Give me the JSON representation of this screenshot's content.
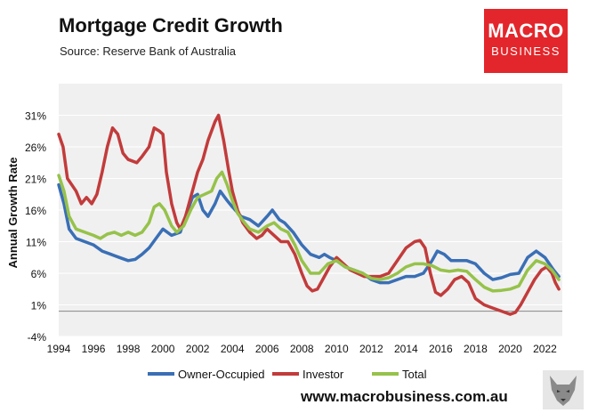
{
  "header": {
    "title": "Mortgage Credit Growth",
    "subtitle": "Source: Reserve Bank of Australia"
  },
  "logo": {
    "top": "MACRO",
    "bottom": "BUSINESS",
    "color": "#e3262b"
  },
  "footer": {
    "url": "www.macrobusiness.com.au",
    "corner_icon": "wolf-emblem-icon"
  },
  "colors": {
    "plot_bg": "#f0f0f0",
    "grid": "#ffffff",
    "zero_line": "#888888"
  },
  "chart_data": {
    "type": "line",
    "title": "Mortgage Credit Growth",
    "ylabel": "Annual Growth Rate",
    "xlabel": "",
    "xlim": [
      1994,
      2023
    ],
    "ylim": [
      -4,
      36
    ],
    "yticks": [
      -4,
      1,
      6,
      11,
      16,
      21,
      26,
      31
    ],
    "ytick_labels": [
      "-4%",
      "1%",
      "6%",
      "11%",
      "16%",
      "21%",
      "26%",
      "31%"
    ],
    "xticks": [
      1994,
      1996,
      1998,
      2000,
      2002,
      2004,
      2006,
      2008,
      2010,
      2012,
      2014,
      2016,
      2018,
      2020,
      2022
    ],
    "xtick_labels": [
      "1994",
      "1996",
      "1998",
      "2000",
      "2002",
      "2004",
      "2006",
      "2008",
      "2010",
      "2012",
      "2014",
      "2016",
      "2018",
      "2020",
      "2022"
    ],
    "grid": "horizontal",
    "legend_position": "bottom",
    "series": [
      {
        "name": "Owner-Occupied",
        "color": "#3a6fb5",
        "points": [
          [
            1994.0,
            20
          ],
          [
            1994.3,
            17
          ],
          [
            1994.6,
            13
          ],
          [
            1995.0,
            11.5
          ],
          [
            1995.5,
            11
          ],
          [
            1996.0,
            10.5
          ],
          [
            1996.5,
            9.5
          ],
          [
            1997.0,
            9
          ],
          [
            1997.5,
            8.5
          ],
          [
            1998.0,
            8
          ],
          [
            1998.4,
            8.2
          ],
          [
            1998.8,
            9
          ],
          [
            1999.2,
            10
          ],
          [
            1999.6,
            11.5
          ],
          [
            2000.0,
            13
          ],
          [
            2000.5,
            12
          ],
          [
            2001.0,
            12.5
          ],
          [
            2001.3,
            15
          ],
          [
            2001.7,
            18
          ],
          [
            2002.0,
            18.5
          ],
          [
            2002.3,
            16
          ],
          [
            2002.6,
            15
          ],
          [
            2003.0,
            17
          ],
          [
            2003.3,
            19
          ],
          [
            2003.7,
            17.5
          ],
          [
            2004.0,
            16.5
          ],
          [
            2004.5,
            15
          ],
          [
            2005.0,
            14.5
          ],
          [
            2005.5,
            13.5
          ],
          [
            2006.0,
            15
          ],
          [
            2006.3,
            16
          ],
          [
            2006.7,
            14.5
          ],
          [
            2007.0,
            14
          ],
          [
            2007.5,
            12.5
          ],
          [
            2008.0,
            10.5
          ],
          [
            2008.5,
            9
          ],
          [
            2009.0,
            8.5
          ],
          [
            2009.3,
            9
          ],
          [
            2009.6,
            8.5
          ],
          [
            2010.0,
            8
          ],
          [
            2010.5,
            7
          ],
          [
            2011.0,
            6.5
          ],
          [
            2011.5,
            6
          ],
          [
            2012.0,
            5
          ],
          [
            2012.5,
            4.5
          ],
          [
            2013.0,
            4.5
          ],
          [
            2013.5,
            5
          ],
          [
            2014.0,
            5.5
          ],
          [
            2014.5,
            5.5
          ],
          [
            2015.0,
            6
          ],
          [
            2015.5,
            8
          ],
          [
            2015.8,
            9.5
          ],
          [
            2016.2,
            9
          ],
          [
            2016.6,
            8
          ],
          [
            2017.0,
            8
          ],
          [
            2017.5,
            8
          ],
          [
            2018.0,
            7.5
          ],
          [
            2018.5,
            6
          ],
          [
            2019.0,
            5
          ],
          [
            2019.5,
            5.3
          ],
          [
            2020.0,
            5.8
          ],
          [
            2020.5,
            6
          ],
          [
            2021.0,
            8.5
          ],
          [
            2021.5,
            9.5
          ],
          [
            2022.0,
            8.5
          ],
          [
            2022.5,
            6.5
          ],
          [
            2022.8,
            5.5
          ]
        ]
      },
      {
        "name": "Investor",
        "color": "#c23b3b",
        "points": [
          [
            1994.0,
            28
          ],
          [
            1994.25,
            26
          ],
          [
            1994.5,
            21
          ],
          [
            1995.0,
            19
          ],
          [
            1995.3,
            17
          ],
          [
            1995.6,
            18
          ],
          [
            1995.9,
            17
          ],
          [
            1996.2,
            18.5
          ],
          [
            1996.5,
            22
          ],
          [
            1996.8,
            26
          ],
          [
            1997.1,
            29
          ],
          [
            1997.4,
            28
          ],
          [
            1997.7,
            25
          ],
          [
            1998.0,
            24
          ],
          [
            1998.5,
            23.5
          ],
          [
            1998.8,
            24.5
          ],
          [
            1999.2,
            26
          ],
          [
            1999.5,
            29
          ],
          [
            1999.8,
            28.5
          ],
          [
            2000.0,
            28
          ],
          [
            2000.2,
            22
          ],
          [
            2000.5,
            17
          ],
          [
            2000.8,
            14
          ],
          [
            2001.0,
            13
          ],
          [
            2001.3,
            15
          ],
          [
            2001.6,
            18
          ],
          [
            2002.0,
            22
          ],
          [
            2002.3,
            24
          ],
          [
            2002.6,
            27
          ],
          [
            2003.0,
            30
          ],
          [
            2003.2,
            31
          ],
          [
            2003.5,
            27
          ],
          [
            2003.8,
            22
          ],
          [
            2004.0,
            19
          ],
          [
            2004.3,
            16
          ],
          [
            2004.6,
            14
          ],
          [
            2005.0,
            12.5
          ],
          [
            2005.4,
            11.5
          ],
          [
            2005.7,
            12
          ],
          [
            2006.0,
            13
          ],
          [
            2006.4,
            12
          ],
          [
            2006.8,
            11
          ],
          [
            2007.2,
            11
          ],
          [
            2007.6,
            9
          ],
          [
            2008.0,
            6
          ],
          [
            2008.3,
            4
          ],
          [
            2008.6,
            3.2
          ],
          [
            2008.9,
            3.5
          ],
          [
            2009.2,
            5
          ],
          [
            2009.6,
            7
          ],
          [
            2010.0,
            8.5
          ],
          [
            2010.4,
            7.5
          ],
          [
            2010.8,
            6.5
          ],
          [
            2011.2,
            6
          ],
          [
            2011.6,
            5.5
          ],
          [
            2012.0,
            5.5
          ],
          [
            2012.5,
            5.5
          ],
          [
            2013.0,
            6
          ],
          [
            2013.5,
            8
          ],
          [
            2014.0,
            10
          ],
          [
            2014.5,
            11
          ],
          [
            2014.8,
            11.2
          ],
          [
            2015.1,
            10
          ],
          [
            2015.4,
            6
          ],
          [
            2015.7,
            3
          ],
          [
            2016.0,
            2.5
          ],
          [
            2016.4,
            3.5
          ],
          [
            2016.8,
            5
          ],
          [
            2017.2,
            5.5
          ],
          [
            2017.6,
            4.5
          ],
          [
            2018.0,
            2
          ],
          [
            2018.5,
            1
          ],
          [
            2019.0,
            0.5
          ],
          [
            2019.5,
            0
          ],
          [
            2020.0,
            -0.5
          ],
          [
            2020.3,
            -0.2
          ],
          [
            2020.6,
            1
          ],
          [
            2021.0,
            3
          ],
          [
            2021.4,
            5
          ],
          [
            2021.8,
            6.5
          ],
          [
            2022.1,
            7
          ],
          [
            2022.4,
            6
          ],
          [
            2022.6,
            4.5
          ],
          [
            2022.8,
            3.5
          ]
        ]
      },
      {
        "name": "Total",
        "color": "#96c24a",
        "points": [
          [
            1994.0,
            21.5
          ],
          [
            1994.3,
            19
          ],
          [
            1994.6,
            15
          ],
          [
            1995.0,
            13
          ],
          [
            1995.5,
            12.5
          ],
          [
            1996.0,
            12
          ],
          [
            1996.4,
            11.5
          ],
          [
            1996.8,
            12.2
          ],
          [
            1997.2,
            12.5
          ],
          [
            1997.6,
            12
          ],
          [
            1998.0,
            12.5
          ],
          [
            1998.4,
            12
          ],
          [
            1998.8,
            12.5
          ],
          [
            1999.2,
            14
          ],
          [
            1999.5,
            16.5
          ],
          [
            1999.8,
            17
          ],
          [
            2000.1,
            16
          ],
          [
            2000.5,
            13.5
          ],
          [
            2000.8,
            12.5
          ],
          [
            2001.2,
            13.5
          ],
          [
            2001.6,
            16
          ],
          [
            2002.0,
            18
          ],
          [
            2002.4,
            18.5
          ],
          [
            2002.8,
            19
          ],
          [
            2003.1,
            21
          ],
          [
            2003.4,
            22
          ],
          [
            2003.7,
            20
          ],
          [
            2004.0,
            17.5
          ],
          [
            2004.3,
            15.5
          ],
          [
            2004.7,
            14
          ],
          [
            2005.0,
            13
          ],
          [
            2005.5,
            12.5
          ],
          [
            2006.0,
            13.5
          ],
          [
            2006.4,
            14
          ],
          [
            2006.8,
            13
          ],
          [
            2007.2,
            12.5
          ],
          [
            2007.6,
            10.5
          ],
          [
            2008.0,
            8
          ],
          [
            2008.5,
            6
          ],
          [
            2009.0,
            6
          ],
          [
            2009.5,
            7.5
          ],
          [
            2010.0,
            8
          ],
          [
            2010.5,
            7
          ],
          [
            2011.0,
            6.5
          ],
          [
            2011.5,
            6
          ],
          [
            2012.0,
            5.2
          ],
          [
            2012.5,
            5
          ],
          [
            2013.0,
            5.3
          ],
          [
            2013.5,
            6
          ],
          [
            2014.0,
            7
          ],
          [
            2014.5,
            7.5
          ],
          [
            2015.0,
            7.5
          ],
          [
            2015.5,
            7.2
          ],
          [
            2016.0,
            6.5
          ],
          [
            2016.5,
            6.3
          ],
          [
            2017.0,
            6.5
          ],
          [
            2017.5,
            6.3
          ],
          [
            2018.0,
            5
          ],
          [
            2018.5,
            3.8
          ],
          [
            2019.0,
            3.2
          ],
          [
            2019.5,
            3.3
          ],
          [
            2020.0,
            3.5
          ],
          [
            2020.5,
            4
          ],
          [
            2021.0,
            6.5
          ],
          [
            2021.5,
            8
          ],
          [
            2022.0,
            7.5
          ],
          [
            2022.4,
            6.5
          ],
          [
            2022.8,
            5
          ]
        ]
      }
    ]
  }
}
